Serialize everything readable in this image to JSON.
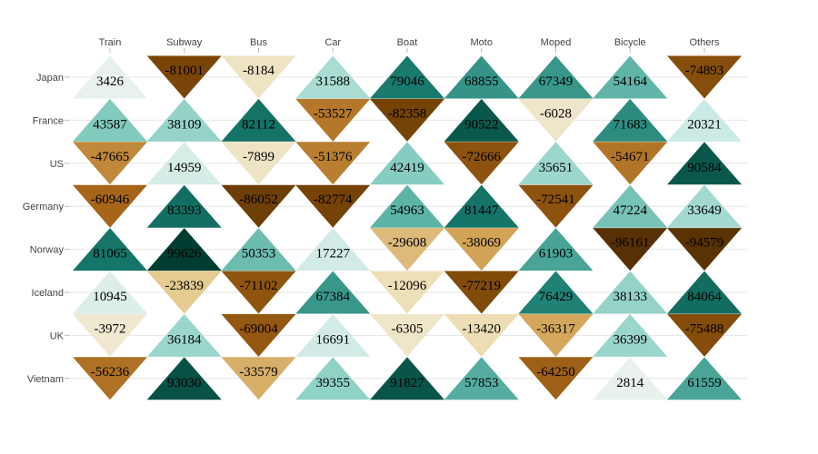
{
  "chart_data": {
    "type": "heatmap",
    "mark": "triangle-up-positive-down-negative",
    "title": "",
    "xlabel": "",
    "ylabel": "",
    "x_axis_position": "top",
    "categories": [
      "Train",
      "Subway",
      "Bus",
      "Car",
      "Boat",
      "Moto",
      "Moped",
      "Bicycle",
      "Others"
    ],
    "rows": [
      "Japan",
      "France",
      "US",
      "Germany",
      "Norway",
      "Iceland",
      "UK",
      "Vietnam"
    ],
    "values": [
      [
        3426,
        -81001,
        -8184,
        31588,
        79046,
        68855,
        67349,
        54164,
        -74893
      ],
      [
        43587,
        38109,
        82112,
        -53527,
        -82358,
        90522,
        -6028,
        71683,
        20321
      ],
      [
        -47665,
        14959,
        -7899,
        -51376,
        42419,
        -72666,
        35651,
        -54671,
        90584
      ],
      [
        -60946,
        83393,
        -86052,
        -82774,
        54963,
        81447,
        -72541,
        47224,
        33649
      ],
      [
        81065,
        99626,
        50353,
        17227,
        -29608,
        -38069,
        61903,
        -96161,
        -94579
      ],
      [
        10945,
        -23839,
        -71102,
        67384,
        -12096,
        -77219,
        76429,
        38133,
        84064
      ],
      [
        -3972,
        36184,
        -69004,
        16691,
        -6305,
        -13420,
        -36317,
        36399,
        -75488
      ],
      [
        -56236,
        93030,
        -33579,
        39355,
        91827,
        57853,
        -64250,
        2814,
        61559
      ]
    ],
    "color_scale": {
      "domain": [
        -100000,
        0,
        100000
      ],
      "negative": [
        "#f2ecdc",
        "#e9d6a0",
        "#cf9c4e",
        "#a8671a",
        "#7b4607",
        "#4e2c04"
      ],
      "positive": [
        "#eef2ee",
        "#cdeae5",
        "#8fd1c6",
        "#4ea99c",
        "#16786c",
        "#003c30"
      ]
    },
    "grid": true,
    "legend": "none"
  }
}
